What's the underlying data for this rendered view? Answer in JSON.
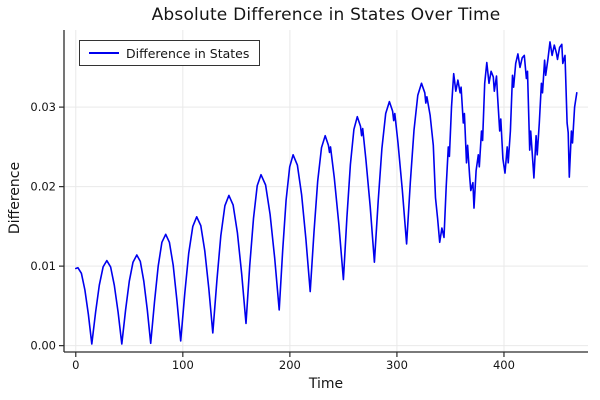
{
  "colors": {
    "background": "#ffffff",
    "series_blue": "#0000ee",
    "grid": "#e9e9e9",
    "spine": "#2b2b2b",
    "text": "#151515"
  },
  "chart_data": {
    "type": "line",
    "title": "Absolute Difference in States Over Time",
    "xlabel": "Time",
    "ylabel": "Difference",
    "xlim": [
      -11,
      478.5
    ],
    "ylim": [
      -0.0008,
      0.0397
    ],
    "grid": true,
    "legend_position": "top-left",
    "xticks": {
      "values": [
        0,
        100,
        200,
        300,
        400
      ],
      "labels": [
        "0",
        "100",
        "200",
        "300",
        "400"
      ]
    },
    "yticks": {
      "values": [
        0,
        0.01,
        0.02,
        0.03
      ],
      "labels": [
        "0.00",
        "0.01",
        "0.02",
        "0.03"
      ]
    },
    "series": [
      {
        "name": "Difference in States",
        "color": "#0000ee",
        "points": [
          [
            0,
            0.0097
          ],
          [
            2,
            0.0098
          ],
          [
            5.3,
            0.0091
          ],
          [
            8.5,
            0.007
          ],
          [
            11.8,
            0.0039
          ],
          [
            15,
            0.0002
          ],
          [
            18.5,
            0.0042
          ],
          [
            22,
            0.0076
          ],
          [
            25.5,
            0.0099
          ],
          [
            29,
            0.0107
          ],
          [
            32.5,
            0.0099
          ],
          [
            36,
            0.0076
          ],
          [
            39.5,
            0.0042
          ],
          [
            43,
            0.0002
          ],
          [
            46.5,
            0.0045
          ],
          [
            50,
            0.0081
          ],
          [
            53.5,
            0.0105
          ],
          [
            57,
            0.0114
          ],
          [
            60.3,
            0.0106
          ],
          [
            63.5,
            0.0081
          ],
          [
            66.8,
            0.0045
          ],
          [
            70,
            0.0003
          ],
          [
            73.5,
            0.0055
          ],
          [
            77,
            0.01
          ],
          [
            80.5,
            0.013
          ],
          [
            84,
            0.014
          ],
          [
            87.5,
            0.013
          ],
          [
            91,
            0.0101
          ],
          [
            94.5,
            0.0057
          ],
          [
            98,
            0.0006
          ],
          [
            101.8,
            0.0066
          ],
          [
            105.5,
            0.0116
          ],
          [
            109.3,
            0.015
          ],
          [
            113,
            0.0162
          ],
          [
            116.8,
            0.0151
          ],
          [
            120.5,
            0.0119
          ],
          [
            124.3,
            0.0072
          ],
          [
            128,
            0.0016
          ],
          [
            131.8,
            0.0082
          ],
          [
            135.5,
            0.0138
          ],
          [
            139.3,
            0.0176
          ],
          [
            143,
            0.0189
          ],
          [
            147,
            0.0177
          ],
          [
            151,
            0.0142
          ],
          [
            155,
            0.009
          ],
          [
            159,
            0.0028
          ],
          [
            162.5,
            0.01
          ],
          [
            166,
            0.016
          ],
          [
            169.5,
            0.0201
          ],
          [
            173,
            0.0215
          ],
          [
            177.3,
            0.0202
          ],
          [
            181.5,
            0.0165
          ],
          [
            185.8,
            0.011
          ],
          [
            190,
            0.0045
          ],
          [
            193.3,
            0.012
          ],
          [
            196.5,
            0.0183
          ],
          [
            199.8,
            0.0225
          ],
          [
            203,
            0.024
          ],
          [
            207,
            0.0227
          ],
          [
            211,
            0.019
          ],
          [
            215,
            0.0134
          ],
          [
            219,
            0.0068
          ],
          [
            222.5,
            0.0143
          ],
          [
            226,
            0.0207
          ],
          [
            229.5,
            0.0249
          ],
          [
            233,
            0.0264
          ],
          [
            236,
            0.0252
          ],
          [
            237,
            0.0243
          ],
          [
            238,
            0.025
          ],
          [
            241.5,
            0.0211
          ],
          [
            245.8,
            0.0152
          ],
          [
            250,
            0.0083
          ],
          [
            253.3,
            0.0161
          ],
          [
            256.5,
            0.0228
          ],
          [
            259.8,
            0.0272
          ],
          [
            263,
            0.0288
          ],
          [
            266,
            0.0276
          ],
          [
            267,
            0.0264
          ],
          [
            268,
            0.0273
          ],
          [
            271,
            0.0234
          ],
          [
            275,
            0.0175
          ],
          [
            279,
            0.0105
          ],
          [
            282.5,
            0.0182
          ],
          [
            286,
            0.0248
          ],
          [
            289.5,
            0.0292
          ],
          [
            293,
            0.0307
          ],
          [
            296,
            0.0295
          ],
          [
            297,
            0.0283
          ],
          [
            298,
            0.0292
          ],
          [
            301,
            0.0255
          ],
          [
            305,
            0.0196
          ],
          [
            309,
            0.0128
          ],
          [
            312.5,
            0.0205
          ],
          [
            316,
            0.0271
          ],
          [
            319.5,
            0.0315
          ],
          [
            323,
            0.033
          ],
          [
            326,
            0.0318
          ],
          [
            327,
            0.0305
          ],
          [
            328,
            0.0313
          ],
          [
            331,
            0.029
          ],
          [
            334,
            0.0252
          ],
          [
            336,
            0.0186
          ],
          [
            338,
            0.016
          ],
          [
            340,
            0.013
          ],
          [
            342,
            0.0148
          ],
          [
            344,
            0.0136
          ],
          [
            346,
            0.02
          ],
          [
            348,
            0.025
          ],
          [
            349,
            0.0238
          ],
          [
            351,
            0.03
          ],
          [
            353,
            0.0342
          ],
          [
            355,
            0.032
          ],
          [
            357,
            0.0334
          ],
          [
            359,
            0.0318
          ],
          [
            360,
            0.0325
          ],
          [
            362,
            0.028
          ],
          [
            363,
            0.0292
          ],
          [
            365,
            0.023
          ],
          [
            366,
            0.0252
          ],
          [
            368,
            0.0212
          ],
          [
            369,
            0.0195
          ],
          [
            371,
            0.0205
          ],
          [
            372,
            0.0173
          ],
          [
            374,
            0.022
          ],
          [
            376,
            0.024
          ],
          [
            377,
            0.0225
          ],
          [
            379,
            0.027
          ],
          [
            380,
            0.0258
          ],
          [
            382,
            0.033
          ],
          [
            384,
            0.0356
          ],
          [
            386,
            0.033
          ],
          [
            388,
            0.0345
          ],
          [
            390,
            0.0338
          ],
          [
            391,
            0.032
          ],
          [
            393,
            0.0339
          ],
          [
            394,
            0.0315
          ],
          [
            396,
            0.027
          ],
          [
            397,
            0.0285
          ],
          [
            399,
            0.0235
          ],
          [
            401,
            0.0217
          ],
          [
            403,
            0.025
          ],
          [
            404,
            0.023
          ],
          [
            406,
            0.027
          ],
          [
            408,
            0.034
          ],
          [
            409,
            0.0325
          ],
          [
            411,
            0.0355
          ],
          [
            413,
            0.0367
          ],
          [
            415,
            0.035
          ],
          [
            417,
            0.0362
          ],
          [
            419,
            0.0365
          ],
          [
            421,
            0.0336
          ],
          [
            422,
            0.0345
          ],
          [
            424,
            0.0246
          ],
          [
            425,
            0.027
          ],
          [
            427,
            0.023
          ],
          [
            428,
            0.0211
          ],
          [
            430,
            0.0264
          ],
          [
            431,
            0.024
          ],
          [
            433,
            0.028
          ],
          [
            435,
            0.033
          ],
          [
            436,
            0.0318
          ],
          [
            438,
            0.0359
          ],
          [
            439,
            0.034
          ],
          [
            441,
            0.036
          ],
          [
            443,
            0.0382
          ],
          [
            445,
            0.0365
          ],
          [
            447,
            0.0378
          ],
          [
            449,
            0.0368
          ],
          [
            450,
            0.036
          ],
          [
            452,
            0.0375
          ],
          [
            454,
            0.0379
          ],
          [
            455,
            0.0355
          ],
          [
            457,
            0.0365
          ],
          [
            459,
            0.028
          ],
          [
            460,
            0.0268
          ],
          [
            461,
            0.0212
          ],
          [
            463,
            0.027
          ],
          [
            464,
            0.0255
          ],
          [
            466,
            0.03
          ],
          [
            468,
            0.0318
          ]
        ]
      }
    ]
  }
}
